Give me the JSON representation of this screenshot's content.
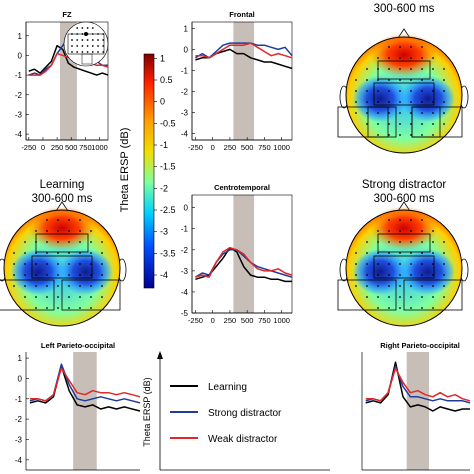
{
  "figure": {
    "colorbar": {
      "label": "Theta ERSP (dB)",
      "ticks": [
        "1",
        "0.5",
        "0",
        "-0.5",
        "-1",
        "-1.5",
        "-2",
        "-2.5",
        "-3",
        "-3.5",
        "-4"
      ],
      "range": [
        -4.3,
        1.1
      ],
      "colormap": "jet-reversed-top-red"
    },
    "legend": {
      "entries": [
        {
          "label": "Learning",
          "color": "#000000"
        },
        {
          "label": "Strong distractor",
          "color": "#1f3c9c"
        },
        {
          "label": "Weak distractor",
          "color": "#e0282a"
        }
      ],
      "axis_label": "Theta ERSP (dB)"
    },
    "topomaps": [
      {
        "id": "top-right",
        "title_lines": [
          "",
          "300-600 ms"
        ]
      },
      {
        "id": "learning",
        "title_lines": [
          "Learning",
          "300-600 ms"
        ]
      },
      {
        "id": "strong",
        "title_lines": [
          "Strong distractor",
          "300-600 ms"
        ]
      }
    ]
  },
  "chart_data": [
    {
      "type": "line",
      "title": "FZ",
      "x": [
        -250,
        -150,
        -50,
        50,
        150,
        250,
        350,
        450,
        550,
        650,
        750,
        850,
        950,
        1050,
        1150
      ],
      "xticks": [
        "-250",
        "0",
        "250",
        "500",
        "750",
        "1000"
      ],
      "xlim": [
        -300,
        1150
      ],
      "yticks": [
        "1",
        "0",
        "-1",
        "-2",
        "-3",
        "-4"
      ],
      "ylim": [
        -4.3,
        1.7
      ],
      "window": [
        300,
        600
      ],
      "series": [
        {
          "name": "Learning",
          "color": "#000000",
          "values": [
            -0.8,
            -0.7,
            -0.9,
            -0.6,
            -0.3,
            0.5,
            0.3,
            -0.4,
            -0.6,
            -0.7,
            -0.8,
            -0.9,
            -1.0,
            -0.9,
            -1.0
          ]
        },
        {
          "name": "Strong distractor",
          "color": "#1f3c9c",
          "values": [
            -1.0,
            -0.9,
            -1.0,
            -0.7,
            -0.5,
            0.1,
            0.5,
            0.9,
            0.8,
            0.2,
            -0.2,
            -0.3,
            -0.3,
            -0.5,
            -0.5
          ]
        },
        {
          "name": "Weak distractor",
          "color": "#e0282a",
          "values": [
            -1.0,
            -1.0,
            -1.0,
            -0.8,
            -0.5,
            0.1,
            0.0,
            -0.1,
            0.0,
            -0.2,
            -0.3,
            -0.4,
            -0.5,
            -0.5,
            -0.6
          ]
        }
      ]
    },
    {
      "type": "line",
      "title": "Frontal",
      "x": [
        -250,
        -150,
        -50,
        50,
        150,
        250,
        350,
        450,
        550,
        650,
        750,
        850,
        950,
        1050,
        1150
      ],
      "xticks": [
        "-250",
        "0",
        "250",
        "500",
        "750",
        "1000"
      ],
      "xlim": [
        -300,
        1150
      ],
      "yticks": [
        "1",
        "0",
        "-1",
        "-2",
        "-3",
        "-4"
      ],
      "ylim": [
        -4.3,
        1.3
      ],
      "window": [
        300,
        600
      ],
      "series": [
        {
          "name": "Learning",
          "color": "#000000",
          "values": [
            -0.5,
            -0.4,
            -0.4,
            -0.2,
            -0.1,
            0.0,
            -0.2,
            -0.2,
            -0.4,
            -0.5,
            -0.6,
            -0.6,
            -0.7,
            -0.8,
            -0.9
          ]
        },
        {
          "name": "Strong distractor",
          "color": "#1f3c9c",
          "values": [
            -0.4,
            -0.2,
            -0.4,
            -0.1,
            0.2,
            0.3,
            0.3,
            0.3,
            0.3,
            0.2,
            0.2,
            0.1,
            0.0,
            0.1,
            -0.3
          ]
        },
        {
          "name": "Weak distractor",
          "color": "#e0282a",
          "values": [
            -0.3,
            -0.3,
            -0.4,
            -0.2,
            0.0,
            0.2,
            0.2,
            0.2,
            0.3,
            0.1,
            -0.1,
            -0.3,
            -0.2,
            -0.3,
            -0.4
          ]
        }
      ]
    },
    {
      "type": "line",
      "title": "Centrotemporal",
      "x": [
        -250,
        -150,
        -50,
        50,
        150,
        250,
        350,
        450,
        550,
        650,
        750,
        850,
        950,
        1050,
        1150
      ],
      "xticks": [
        "-250",
        "0",
        "250",
        "500",
        "750",
        "1000"
      ],
      "xlim": [
        -300,
        1150
      ],
      "yticks": [
        "0",
        "-1",
        "-2",
        "-3",
        "-4",
        "-5"
      ],
      "ylim": [
        -5.0,
        0.6
      ],
      "window": [
        300,
        600
      ],
      "series": [
        {
          "name": "Learning",
          "color": "#000000",
          "values": [
            -3.4,
            -3.3,
            -3.2,
            -2.8,
            -2.4,
            -1.9,
            -2.1,
            -2.8,
            -3.2,
            -3.3,
            -3.3,
            -3.4,
            -3.4,
            -3.5,
            -3.5
          ]
        },
        {
          "name": "Strong distractor",
          "color": "#1f3c9c",
          "values": [
            -3.3,
            -3.1,
            -3.2,
            -2.6,
            -2.2,
            -2.0,
            -2.0,
            -2.3,
            -2.6,
            -2.8,
            -2.9,
            -3.0,
            -3.1,
            -3.2,
            -3.3
          ]
        },
        {
          "name": "Weak distractor",
          "color": "#e0282a",
          "values": [
            -3.3,
            -3.2,
            -3.3,
            -2.6,
            -2.1,
            -1.9,
            -2.0,
            -2.2,
            -2.6,
            -2.9,
            -3.0,
            -3.0,
            -2.9,
            -3.1,
            -3.2
          ]
        }
      ]
    },
    {
      "type": "line",
      "title": "Left Parieto-occipital",
      "x": [
        -250,
        -150,
        -50,
        50,
        150,
        250,
        350,
        450,
        550,
        650,
        750,
        850,
        950,
        1050,
        1150
      ],
      "yticks": [
        "1",
        "0",
        "-1",
        "-2",
        "-3",
        "-4"
      ],
      "ylim": [
        -4.5,
        1.3
      ],
      "xlim": [
        -300,
        1150
      ],
      "window": [
        300,
        600
      ],
      "series": [
        {
          "name": "Learning",
          "color": "#000000",
          "values": [
            -1.2,
            -1.1,
            -1.2,
            -0.9,
            0.6,
            -0.6,
            -1.3,
            -1.4,
            -1.3,
            -1.5,
            -1.4,
            -1.5,
            -1.4,
            -1.5,
            -1.6
          ]
        },
        {
          "name": "Strong distractor",
          "color": "#1f3c9c",
          "values": [
            -1.1,
            -1.0,
            -1.1,
            -0.8,
            0.7,
            -0.3,
            -1.0,
            -1.1,
            -1.0,
            -0.9,
            -1.0,
            -1.1,
            -1.0,
            -1.1,
            -1.2
          ]
        },
        {
          "name": "Weak distractor",
          "color": "#e0282a",
          "values": [
            -1.0,
            -1.0,
            -1.1,
            -0.8,
            0.5,
            -0.1,
            -0.7,
            -0.8,
            -0.6,
            -0.7,
            -0.7,
            -0.8,
            -0.7,
            -0.8,
            -0.9
          ]
        }
      ]
    },
    {
      "type": "line",
      "title": "Right Parieto-occipital",
      "x": [
        -250,
        -150,
        -50,
        50,
        150,
        250,
        350,
        450,
        550,
        650,
        750,
        850,
        950,
        1050,
        1150
      ],
      "yticks": [],
      "ylim": [
        -4.5,
        1.3
      ],
      "xlim": [
        -300,
        1150
      ],
      "window": [
        300,
        600
      ],
      "series": [
        {
          "name": "Learning",
          "color": "#000000",
          "values": [
            -1.2,
            -1.1,
            -1.2,
            -0.8,
            0.8,
            -0.9,
            -1.4,
            -1.3,
            -1.4,
            -1.6,
            -1.4,
            -1.5,
            -1.6,
            -1.5,
            -1.5
          ]
        },
        {
          "name": "Strong distractor",
          "color": "#1f3c9c",
          "values": [
            -1.1,
            -1.0,
            -1.1,
            -0.7,
            0.6,
            -0.4,
            -0.9,
            -0.9,
            -1.0,
            -1.1,
            -1.0,
            -1.1,
            -1.1,
            -1.1,
            -1.2
          ]
        },
        {
          "name": "Weak distractor",
          "color": "#e0282a",
          "values": [
            -1.0,
            -1.0,
            -1.1,
            -0.7,
            0.5,
            -0.2,
            -0.7,
            -0.6,
            -0.8,
            -0.9,
            -0.7,
            -0.9,
            -0.8,
            -1.0,
            -1.1
          ]
        }
      ]
    }
  ]
}
